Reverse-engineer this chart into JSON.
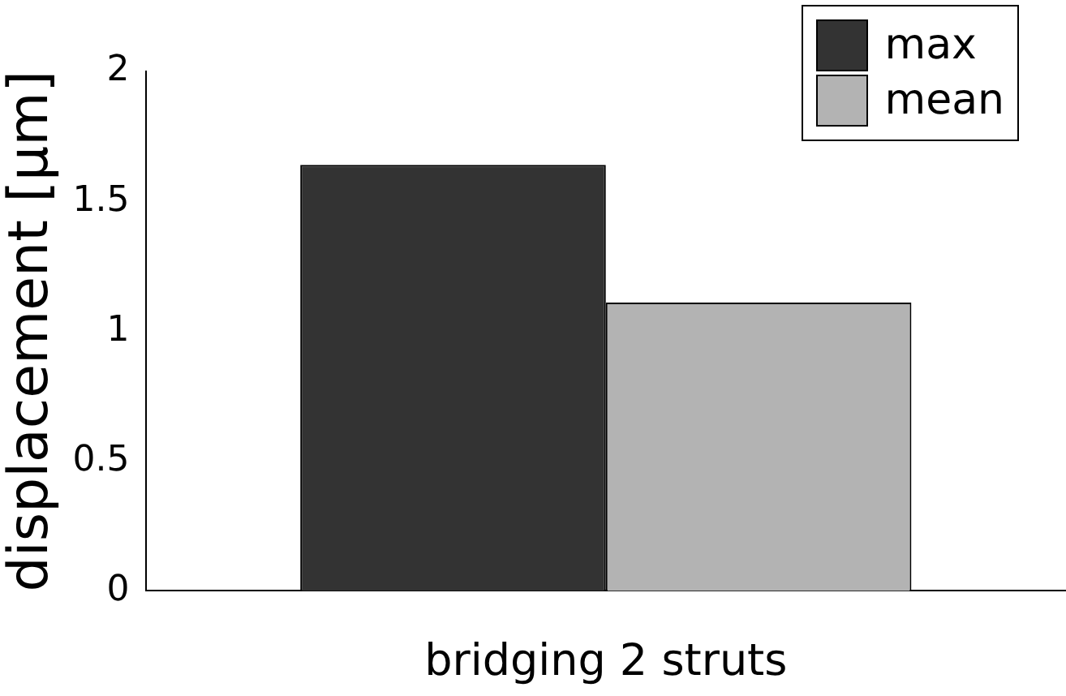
{
  "chart_data": {
    "type": "bar",
    "xlabel": "bridging 2 struts",
    "ylabel": "displacement [µm]",
    "categories": [
      null
    ],
    "series": [
      {
        "name": "max",
        "color": "#333333",
        "values": [
          1.64
        ]
      },
      {
        "name": "mean",
        "color": "#b3b3b3",
        "values": [
          1.11
        ]
      }
    ],
    "ylim": [
      0,
      2
    ],
    "yticks": [
      0,
      0.5,
      1,
      1.5,
      2
    ],
    "grid": false,
    "legend": "top right"
  }
}
